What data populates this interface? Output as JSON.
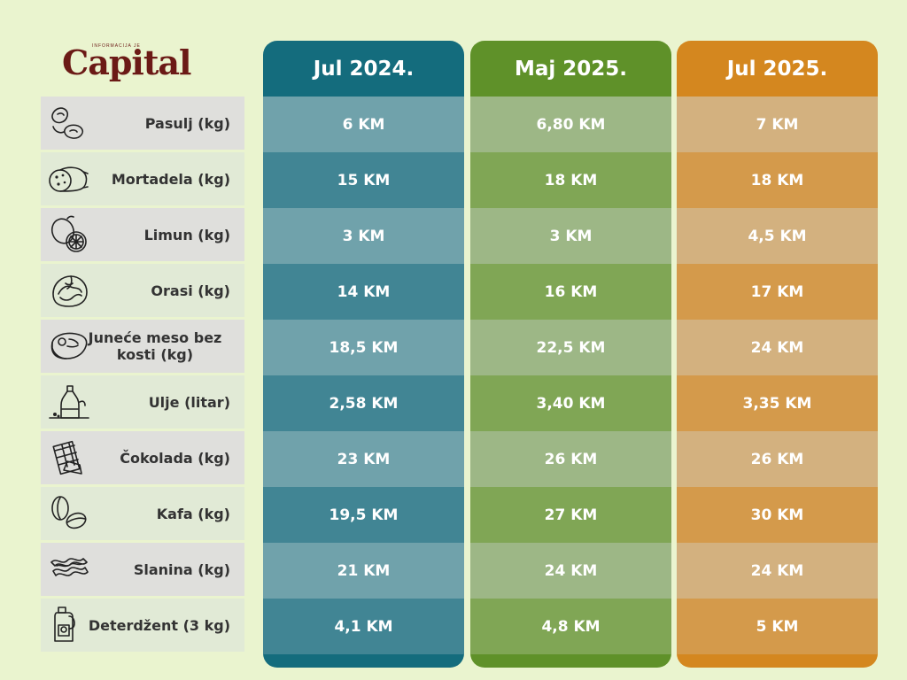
{
  "brand": {
    "tagline": "INFORMACIJA JE",
    "name": "Capital"
  },
  "colors": {
    "background": "#eaf4cf",
    "jul2024": {
      "head": "#146c7d",
      "light": "#70a2ab",
      "dark": "#418594"
    },
    "maj2025": {
      "head": "#5f9129",
      "light": "#9db786",
      "dark": "#80a655"
    },
    "jul2025": {
      "head": "#d4871f",
      "light": "#d3b17f",
      "dark": "#d49a4b"
    }
  },
  "chart_data": {
    "type": "table",
    "columns": [
      "Jul 2024.",
      "Maj 2025.",
      "Jul 2025."
    ],
    "rows": [
      {
        "label": "Pasulj (kg)",
        "icon": "beans-icon",
        "values": [
          "6 KM",
          "6,80 KM",
          "7 KM"
        ]
      },
      {
        "label": "Mortadela (kg)",
        "icon": "mortadella-icon",
        "values": [
          "15 KM",
          "18 KM",
          "18 KM"
        ]
      },
      {
        "label": "Limun (kg)",
        "icon": "lemon-icon",
        "values": [
          "3 KM",
          "3 KM",
          "4,5 KM"
        ]
      },
      {
        "label": "Orasi (kg)",
        "icon": "walnut-icon",
        "values": [
          "14 KM",
          "16 KM",
          "17 KM"
        ]
      },
      {
        "label": "Juneće meso bez kosti (kg)",
        "icon": "steak-icon",
        "values": [
          "18,5 KM",
          "22,5 KM",
          "24 KM"
        ]
      },
      {
        "label": "Ulje (litar)",
        "icon": "oil-bottle-icon",
        "values": [
          "2,58 KM",
          "3,40 KM",
          "3,35 KM"
        ]
      },
      {
        "label": "Čokolada (kg)",
        "icon": "chocolate-icon",
        "values": [
          "23 KM",
          "26 KM",
          "26 KM"
        ]
      },
      {
        "label": "Kafa (kg)",
        "icon": "coffee-bean-icon",
        "values": [
          "19,5 KM",
          "27 KM",
          "30 KM"
        ]
      },
      {
        "label": "Slanina (kg)",
        "icon": "bacon-icon",
        "values": [
          "21 KM",
          "24 KM",
          "24 KM"
        ]
      },
      {
        "label": "Deterdžent (3 kg)",
        "icon": "detergent-icon",
        "values": [
          "4,1 KM",
          "4,8 KM",
          "5 KM"
        ]
      }
    ]
  }
}
